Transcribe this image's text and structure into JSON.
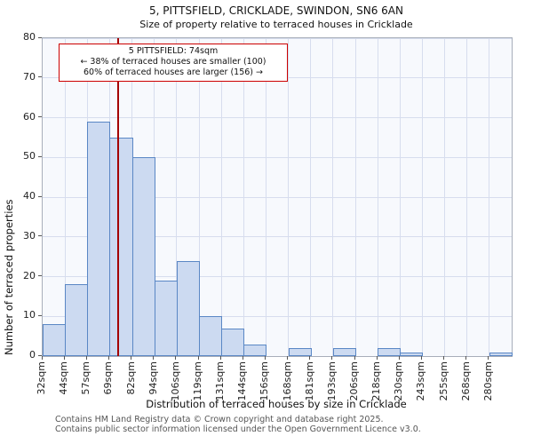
{
  "title": "5, PITTSFIELD, CRICKLADE, SWINDON, SN6 6AN",
  "subtitle": "Size of property relative to terraced houses in Cricklade",
  "annotation": {
    "line1": "5 PITTSFIELD: 74sqm",
    "line2": "← 38% of terraced houses are smaller (100)",
    "line3": "60% of terraced houses are larger (156) →"
  },
  "footer": {
    "line1": "Contains HM Land Registry data © Crown copyright and database right 2025.",
    "line2": "Contains public sector information licensed under the Open Government Licence v3.0."
  },
  "chart_data": {
    "type": "bar",
    "title": "5, PITTSFIELD, CRICKLADE, SWINDON, SN6 6AN",
    "subtitle": "Size of property relative to terraced houses in Cricklade",
    "xlabel": "Distribution of terraced houses by size in Cricklade",
    "ylabel": "Number of terraced properties",
    "categories": [
      "32sqm",
      "44sqm",
      "57sqm",
      "69sqm",
      "82sqm",
      "94sqm",
      "106sqm",
      "119sqm",
      "131sqm",
      "144sqm",
      "156sqm",
      "168sqm",
      "181sqm",
      "193sqm",
      "206sqm",
      "218sqm",
      "230sqm",
      "243sqm",
      "255sqm",
      "268sqm",
      "280sqm"
    ],
    "values": [
      8,
      18,
      59,
      55,
      50,
      19,
      24,
      10,
      7,
      3,
      0,
      2,
      0,
      2,
      0,
      2,
      1,
      0,
      0,
      0,
      1
    ],
    "ylim": [
      0,
      80
    ],
    "y_ticks": [
      0,
      10,
      20,
      30,
      40,
      50,
      60,
      70,
      80
    ],
    "grid": true,
    "legend": "none",
    "marker": {
      "label": "5 PITTSFIELD",
      "value_sqm": 74,
      "bin_index": 3,
      "bin_start_sqm": 69,
      "bin_end_sqm": 82,
      "color": "#a40000"
    },
    "bar_fill": "#ccdaf1",
    "bar_edge": "#5a87c5",
    "grid_color": "#d7ddee",
    "plot_bg": "#f7f9fd"
  }
}
